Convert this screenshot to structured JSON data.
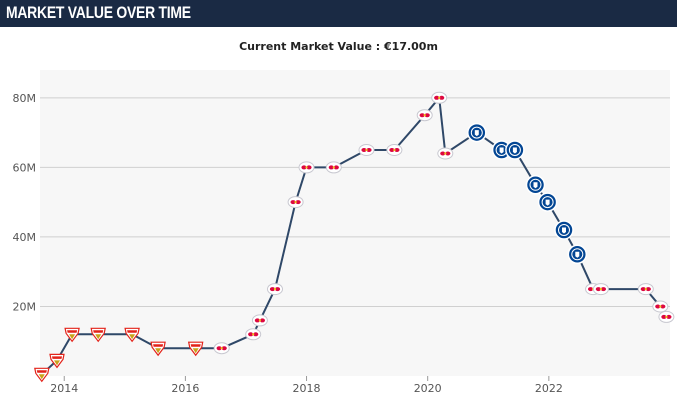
{
  "header": {
    "title": "MARKET VALUE OVER TIME"
  },
  "chart_data": {
    "type": "line",
    "title": "Current Market Value : €17.00m",
    "xlabel": "",
    "ylabel": "",
    "x_ticks": [
      2014,
      2016,
      2018,
      2020,
      2022
    ],
    "y_ticks": [
      20,
      40,
      60,
      80
    ],
    "y_tick_labels": [
      "20M",
      "40M",
      "60M",
      "80M"
    ],
    "xlim": [
      2013.6,
      2024.0
    ],
    "ylim": [
      0,
      88
    ],
    "grid": true,
    "series": [
      {
        "color": "#2f4868",
        "points": [
          {
            "x": 2013.63,
            "y": 0.5,
            "club": "stuttgart"
          },
          {
            "x": 2013.88,
            "y": 4.5,
            "club": "stuttgart"
          },
          {
            "x": 2014.13,
            "y": 12,
            "club": "stuttgart"
          },
          {
            "x": 2014.56,
            "y": 12,
            "club": "stuttgart"
          },
          {
            "x": 2015.12,
            "y": 12,
            "club": "stuttgart"
          },
          {
            "x": 2015.55,
            "y": 8,
            "club": "stuttgart"
          },
          {
            "x": 2016.17,
            "y": 8,
            "club": "stuttgart"
          },
          {
            "x": 2016.6,
            "y": 8,
            "club": "leipzig"
          },
          {
            "x": 2017.12,
            "y": 12,
            "club": "leipzig"
          },
          {
            "x": 2017.23,
            "y": 16,
            "club": "leipzig"
          },
          {
            "x": 2017.48,
            "y": 25,
            "club": "leipzig"
          },
          {
            "x": 2017.82,
            "y": 50,
            "club": "leipzig"
          },
          {
            "x": 2018.0,
            "y": 60,
            "club": "leipzig"
          },
          {
            "x": 2018.45,
            "y": 60,
            "club": "leipzig"
          },
          {
            "x": 2018.99,
            "y": 65,
            "club": "leipzig"
          },
          {
            "x": 2019.45,
            "y": 65,
            "club": "leipzig"
          },
          {
            "x": 2019.95,
            "y": 75,
            "club": "leipzig"
          },
          {
            "x": 2020.19,
            "y": 80,
            "club": "leipzig"
          },
          {
            "x": 2020.29,
            "y": 64,
            "club": "leipzig"
          },
          {
            "x": 2020.81,
            "y": 70,
            "club": "chelsea"
          },
          {
            "x": 2021.22,
            "y": 65,
            "club": "chelsea"
          },
          {
            "x": 2021.44,
            "y": 65,
            "club": "chelsea"
          },
          {
            "x": 2021.78,
            "y": 55,
            "club": "chelsea"
          },
          {
            "x": 2021.98,
            "y": 50,
            "club": "chelsea"
          },
          {
            "x": 2022.25,
            "y": 42,
            "club": "chelsea"
          },
          {
            "x": 2022.47,
            "y": 35,
            "club": "chelsea"
          },
          {
            "x": 2022.73,
            "y": 25,
            "club": "leipzig"
          },
          {
            "x": 2022.86,
            "y": 25,
            "club": "leipzig"
          },
          {
            "x": 2023.6,
            "y": 25,
            "club": "leipzig"
          },
          {
            "x": 2023.84,
            "y": 20,
            "club": "leipzig"
          },
          {
            "x": 2023.94,
            "y": 17,
            "club": "leipzig"
          }
        ]
      }
    ]
  },
  "colors": {
    "header_bg": "#1a2a44",
    "plot_bg": "#f7f7f7",
    "line": "#2f4868",
    "grid": "#d0d0d0",
    "stuttgart_red": "#e32219",
    "stuttgart_gold": "#c9a21a",
    "leipzig_red": "#dd0741",
    "chelsea_blue": "#034694"
  },
  "icons": {
    "stuttgart": "vfb-stuttgart-crest-icon",
    "leipzig": "rb-leipzig-crest-icon",
    "chelsea": "chelsea-crest-icon"
  }
}
